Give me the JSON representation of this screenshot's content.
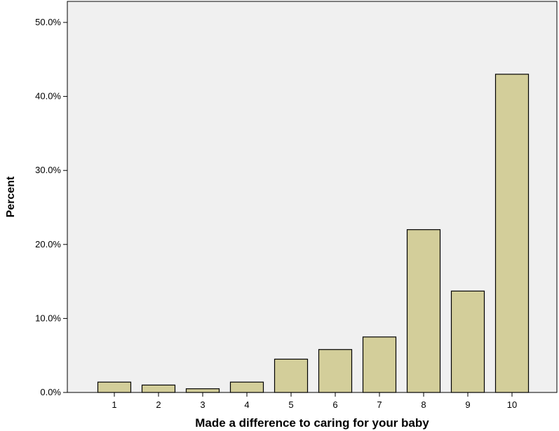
{
  "chart_data": {
    "type": "bar",
    "xlabel": "Made a difference to caring for your baby",
    "ylabel": "Percent",
    "categories": [
      "1",
      "2",
      "3",
      "4",
      "5",
      "6",
      "7",
      "8",
      "9",
      "10"
    ],
    "values": [
      1.4,
      1.0,
      0.5,
      1.4,
      4.5,
      5.8,
      7.5,
      22.0,
      13.7,
      43.0
    ],
    "ylim": [
      0,
      50
    ],
    "yticks": [
      0,
      10,
      20,
      30,
      40,
      50
    ],
    "ytick_labels": [
      "0.0%",
      "10.0%",
      "20.0%",
      "30.0%",
      "40.0%",
      "50.0%"
    ],
    "grid": false,
    "legend": "none",
    "colors": {
      "bar_fill": "#d3ce9a",
      "bar_stroke": "#000000",
      "plot_background": "#f0f0f0"
    }
  }
}
